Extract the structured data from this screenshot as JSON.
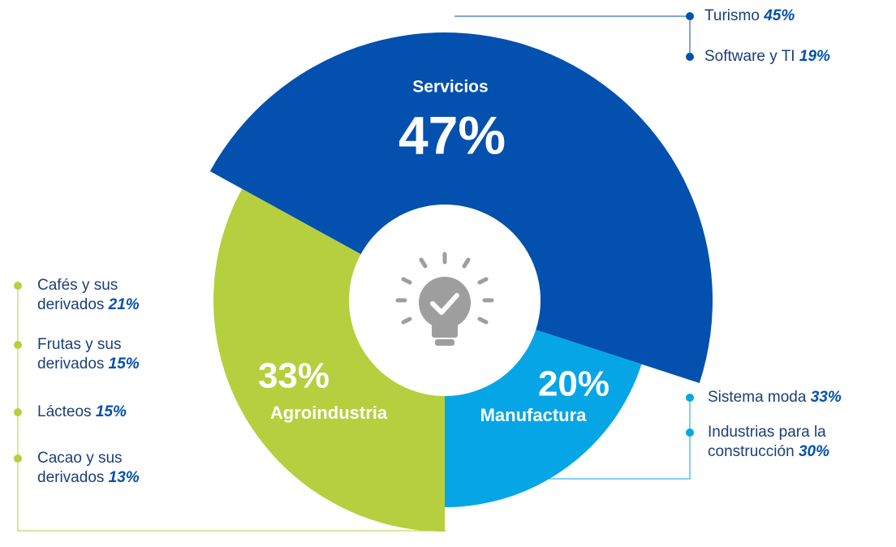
{
  "chart_data": {
    "type": "pie",
    "categories": [
      "Servicios",
      "Agroindustria",
      "Manufactura"
    ],
    "values": [
      47,
      33,
      20
    ],
    "value_labels": [
      "47%",
      "33%",
      "20%"
    ],
    "colors": [
      "#0350ae",
      "#b5cf3e",
      "#06a6e6"
    ],
    "details": [
      {
        "names": [
          "Turismo",
          "Software y TI"
        ],
        "values": [
          45,
          19
        ],
        "value_labels": [
          "45%",
          "19%"
        ]
      },
      {
        "names": [
          "Cafés y sus derivados",
          "Frutas y sus derivados",
          "Lácteos",
          "Cacao y sus derivados"
        ],
        "values": [
          21,
          15,
          15,
          13
        ],
        "value_labels": [
          "21%",
          "15%",
          "15%",
          "13%"
        ]
      },
      {
        "names": [
          "Sistema moda",
          "Industrias para la construcción"
        ],
        "values": [
          33,
          30
        ],
        "value_labels": [
          "33%",
          "30%"
        ]
      }
    ]
  }
}
